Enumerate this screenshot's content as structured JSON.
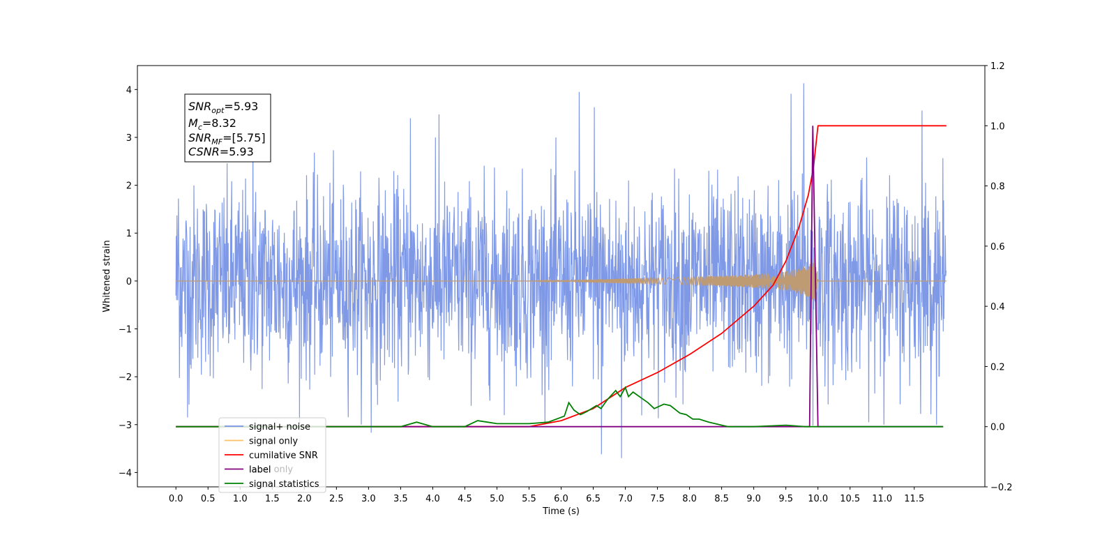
{
  "chart_data": {
    "type": "line",
    "xlabel": "Time (s)",
    "ylabel": "Whitened strain",
    "xlim": [
      -0.6,
      12.6
    ],
    "ylim_left": [
      -4.3,
      4.5
    ],
    "ylim_right": [
      -0.2,
      1.2
    ],
    "x_ticks": [
      0.0,
      0.5,
      1.0,
      1.5,
      2.0,
      2.5,
      3.0,
      3.5,
      4.0,
      4.5,
      5.0,
      5.5,
      6.0,
      6.5,
      7.0,
      7.5,
      8.0,
      8.5,
      9.0,
      9.5,
      10.0,
      10.5,
      11.0,
      11.5
    ],
    "x_tick_labels": [
      "0.0",
      "0.5",
      "1.0",
      "1.5",
      "2.0",
      "2.5",
      "3.0",
      "3.5",
      "4.0",
      "4.5",
      "5.0",
      "5.5",
      "6.0",
      "6.5",
      "7.0",
      "7.5",
      "8.0",
      "8.5",
      "9.0",
      "9.5",
      "10.0",
      "10.5",
      "11.0",
      "11.5"
    ],
    "y_left_ticks": [
      -4,
      -3,
      -2,
      -1,
      0,
      1,
      2,
      3,
      4
    ],
    "y_left_tick_labels": [
      "−4",
      "−3",
      "−2",
      "−1",
      "0",
      "1",
      "2",
      "3",
      "4"
    ],
    "y_right_ticks": [
      -0.2,
      0.0,
      0.2,
      0.4,
      0.6,
      0.8,
      1.0,
      1.2
    ],
    "y_right_tick_labels": [
      "−0.2",
      "0.0",
      "0.2",
      "0.4",
      "0.6",
      "0.8",
      "1.0",
      "1.2"
    ],
    "grid": false,
    "legend_position": "lower-left",
    "annotation": {
      "snr_opt": {
        "base": "SNR",
        "sub": "opt",
        "value": "=5.93"
      },
      "mc": {
        "base": "M",
        "sub": "c",
        "value": "=8.32"
      },
      "snr_mf": {
        "base": "SNR",
        "sub": "MF",
        "value": "=[5.75]"
      },
      "csnr": {
        "base": "CSNR",
        "sub": "",
        "value": "=5.93"
      }
    },
    "series": [
      {
        "name": "signal+ noise",
        "axis": "left",
        "color": "#7893e6",
        "kind": "noise",
        "x_range": [
          0.0,
          12.0
        ],
        "typical_amplitude": 1.2,
        "peak_values": [
          [
            0.04,
            1.72
          ],
          [
            1.2,
            3.0
          ],
          [
            3.65,
            3.4
          ],
          [
            4.1,
            3.48
          ],
          [
            6.28,
            3.95
          ],
          [
            6.52,
            3.63
          ],
          [
            9.58,
            3.91
          ],
          [
            9.78,
            4.13
          ],
          [
            11.62,
            3.56
          ],
          [
            0.18,
            -2.85
          ],
          [
            3.04,
            -3.17
          ],
          [
            6.63,
            -3.62
          ],
          [
            6.94,
            -3.7
          ],
          [
            9.92,
            -3.02
          ]
        ]
      },
      {
        "name": "signal only",
        "axis": "left",
        "color": "#bf9b73",
        "kind": "chirp",
        "x_range": [
          0.0,
          12.0
        ],
        "envelope": [
          [
            0.0,
            0.0
          ],
          [
            5.5,
            0.0
          ],
          [
            6.0,
            0.02
          ],
          [
            7.0,
            0.05
          ],
          [
            8.0,
            0.08
          ],
          [
            9.0,
            0.14
          ],
          [
            9.5,
            0.2
          ],
          [
            9.7,
            0.26
          ],
          [
            9.85,
            0.34
          ],
          [
            9.95,
            0.48
          ],
          [
            10.0,
            0.0
          ],
          [
            12.0,
            0.0
          ]
        ]
      },
      {
        "name": "cumilative SNR",
        "axis": "right",
        "color": "#ff0000",
        "x": [
          0.0,
          5.5,
          6.0,
          6.5,
          7.0,
          7.5,
          8.0,
          8.5,
          9.0,
          9.3,
          9.5,
          9.7,
          9.85,
          9.93,
          10.0,
          12.0
        ],
        "y": [
          0.0,
          0.0,
          0.02,
          0.06,
          0.13,
          0.18,
          0.24,
          0.31,
          0.4,
          0.47,
          0.55,
          0.66,
          0.77,
          0.86,
          1.0,
          1.0
        ]
      },
      {
        "name": "label",
        "axis": "right",
        "color": "#800080",
        "x": [
          0.0,
          9.87,
          9.92,
          10.0,
          11.95
        ],
        "y": [
          0.0,
          0.0,
          1.0,
          0.0,
          0.0
        ]
      },
      {
        "name": "signal statistics",
        "axis": "right",
        "color": "#008000",
        "x": [
          0.0,
          2.5,
          3.0,
          3.5,
          3.75,
          4.0,
          4.5,
          4.7,
          4.85,
          5.0,
          5.5,
          5.8,
          6.05,
          6.12,
          6.2,
          6.3,
          6.4,
          6.55,
          6.62,
          6.72,
          6.85,
          6.92,
          7.0,
          7.05,
          7.12,
          7.25,
          7.35,
          7.45,
          7.6,
          7.7,
          7.85,
          7.95,
          8.05,
          8.15,
          8.3,
          8.6,
          9.0,
          9.5,
          9.8,
          11.95
        ],
        "y": [
          0.0,
          0.0,
          0.0,
          0.0,
          0.015,
          0.0,
          0.0,
          0.02,
          0.015,
          0.01,
          0.01,
          0.015,
          0.035,
          0.08,
          0.055,
          0.04,
          0.05,
          0.07,
          0.06,
          0.09,
          0.12,
          0.1,
          0.13,
          0.1,
          0.115,
          0.095,
          0.08,
          0.06,
          0.075,
          0.07,
          0.045,
          0.04,
          0.025,
          0.025,
          0.015,
          0.0,
          0.0,
          0.005,
          0.0,
          0.0
        ]
      }
    ],
    "legend_items": [
      "signal+ noise",
      "signal only",
      "cumilative SNR",
      "label",
      "signal statistics"
    ],
    "hidden_legend_items": [
      "label only"
    ]
  }
}
